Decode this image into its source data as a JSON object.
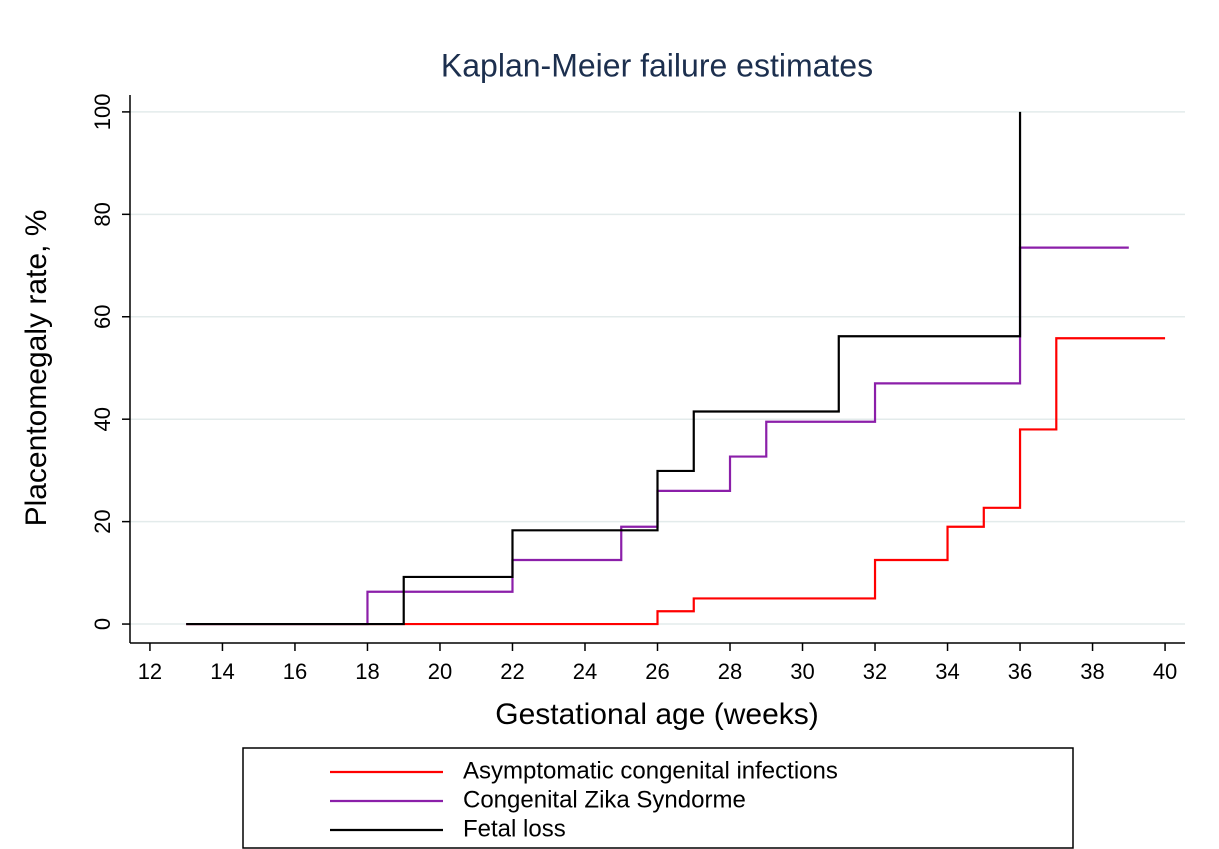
{
  "chart_data": {
    "type": "step",
    "title": "Kaplan-Meier failure estimates",
    "xlabel": "Gestational age (weeks)",
    "ylabel": "Placentomegaly rate, %",
    "xlim": [
      11.45,
      40.55
    ],
    "ylim": [
      -3.7,
      103.3
    ],
    "xticks": [
      12,
      14,
      16,
      18,
      20,
      22,
      24,
      26,
      28,
      30,
      32,
      34,
      36,
      38,
      40
    ],
    "yticks": [
      0,
      20,
      40,
      60,
      80,
      100
    ],
    "grid": true,
    "legend": "bottom",
    "series": [
      {
        "name": "Asymptomatic congenital infections",
        "color": "#ff0000",
        "x": [
          13,
          26,
          27,
          32,
          34,
          35,
          36,
          37,
          40
        ],
        "values": [
          0,
          2.5,
          5,
          12.5,
          19,
          22.7,
          38,
          55.8,
          55.8
        ]
      },
      {
        "name": "Congenital Zika Syndorme",
        "color": "#8b1fa9",
        "x": [
          13,
          18,
          22,
          25,
          26,
          28,
          29,
          32,
          36,
          39
        ],
        "values": [
          0,
          6.3,
          12.5,
          19,
          26,
          32.7,
          39.5,
          47,
          73.5,
          73.5
        ]
      },
      {
        "name": "Fetal loss",
        "color": "#000000",
        "x": [
          13,
          19,
          22,
          26,
          27,
          31,
          36
        ],
        "values": [
          0,
          9.2,
          18.3,
          29.9,
          41.5,
          56.2,
          100
        ]
      }
    ]
  }
}
